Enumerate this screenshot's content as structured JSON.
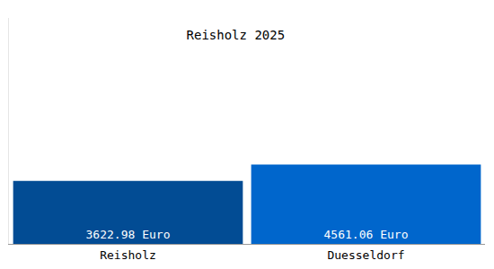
{
  "chart_data": {
    "type": "bar",
    "title": "Reisholz 2025",
    "categories": [
      "Reisholz",
      "Duesseldorf"
    ],
    "values": [
      3622.98,
      4561.06
    ],
    "value_labels": [
      "3622.98 Euro",
      "4561.06 Euro"
    ],
    "colors": [
      "#024c94",
      "#0066cc"
    ],
    "data_labels": true,
    "tick_labels": "x",
    "grid": false,
    "ylim": [
      0,
      13000
    ]
  }
}
